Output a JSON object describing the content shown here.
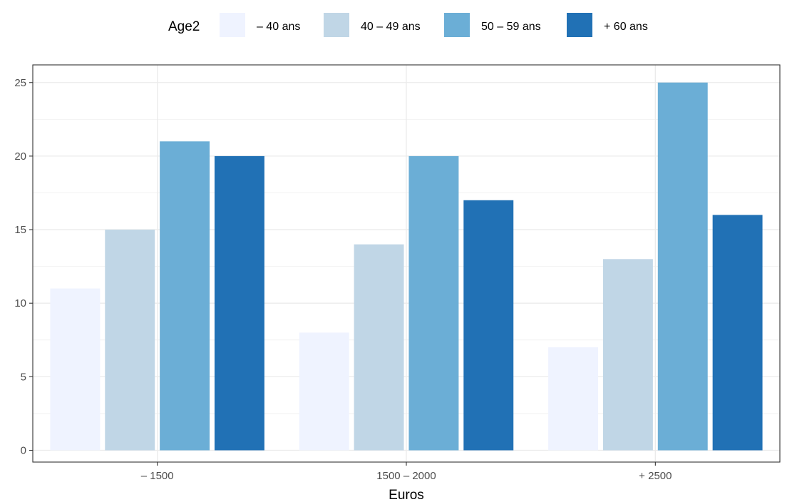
{
  "chart_data": {
    "type": "bar",
    "title": "",
    "xlabel": "Euros",
    "ylabel": "",
    "categories": [
      "– 1500",
      "1500 – 2000",
      "+ 2500"
    ],
    "legend_title": "Age2",
    "legend_position": "top",
    "ylim": [
      -0.8,
      26.2
    ],
    "yticks": [
      0,
      5,
      10,
      15,
      20,
      25
    ],
    "grid": true,
    "series": [
      {
        "name": "– 40 ans",
        "color": "#eff3ff",
        "values": [
          11,
          8,
          7
        ]
      },
      {
        "name": "40 – 49 ans",
        "color": "#c0d6e6",
        "values": [
          15,
          14,
          13
        ]
      },
      {
        "name": "50 – 59 ans",
        "color": "#6baed6",
        "values": [
          21,
          20,
          25
        ]
      },
      {
        "name": "+ 60 ans",
        "color": "#2171b5",
        "values": [
          20,
          17,
          16
        ]
      }
    ]
  }
}
